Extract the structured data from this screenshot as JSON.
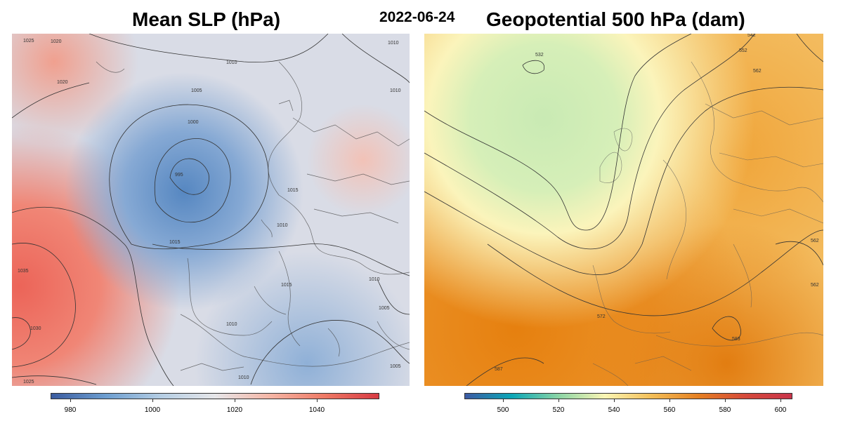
{
  "header": {
    "left_title": "Mean SLP (hPa)",
    "date": "2022-06-24",
    "right_title": "Geopotential 500 hPa (dam)"
  },
  "left_map": {
    "contour_labels": [
      "1025",
      "1020",
      "1010",
      "1010",
      "1010",
      "1005",
      "1000",
      "995",
      "1015",
      "1020",
      "1015",
      "1010",
      "1035",
      "1030",
      "1025",
      "1010",
      "1005",
      "1015",
      "1010",
      "1010",
      "1005"
    ],
    "colorbar": {
      "ticks": [
        "980",
        "1000",
        "1020",
        "1040"
      ],
      "range": [
        975,
        1055
      ]
    }
  },
  "right_map": {
    "contour_labels": [
      "532",
      "542",
      "552",
      "562",
      "562",
      "562",
      "572",
      "583",
      "587"
    ],
    "colorbar": {
      "ticks": [
        "500",
        "520",
        "540",
        "560",
        "580",
        "600"
      ],
      "range": [
        486,
        604
      ]
    }
  },
  "colors": {
    "slp_low": "#3b5b9f",
    "slp_mid": "#e6e6e9",
    "slp_high": "#d73a43",
    "z500_low": "#3d5aa3",
    "z500_mid": "#fbf5b4",
    "z500_high": "#c9354b"
  }
}
